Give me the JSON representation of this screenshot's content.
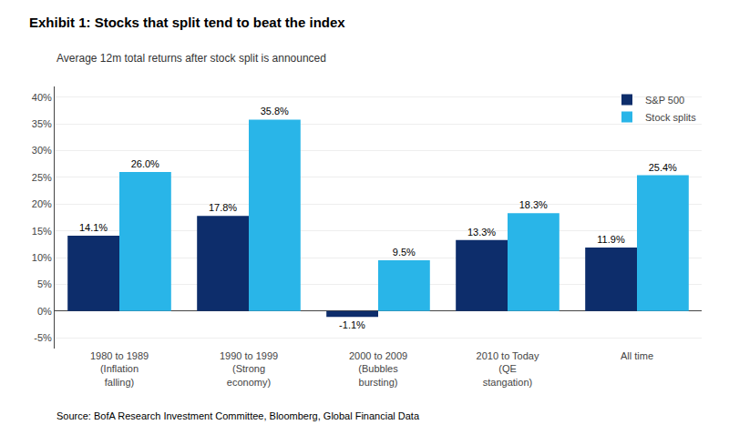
{
  "chart_data": {
    "type": "bar",
    "title": "Exhibit 1: Stocks that split tend to beat the index",
    "subtitle": "Average 12m total returns after stock split is announced",
    "annotations": [
      "Source: BofA Research Investment Committee, Bloomberg, Global Financial Data"
    ],
    "categories": [
      "1980 to 1989\n(Inflation\nfalling)",
      "1990 to 1999\n(Strong\neconomy)",
      "2000 to 2009\n(Bubbles\nbursting)",
      "2010 to Today\n(QE\nstangation)",
      "All time"
    ],
    "series": [
      {
        "name": "S&P 500",
        "color": "#0d2d6b",
        "values": [
          14.1,
          17.8,
          -1.1,
          13.3,
          11.9
        ],
        "value_labels": [
          "14.1%",
          "17.8%",
          "-1.1%",
          "13.3%",
          "11.9%"
        ]
      },
      {
        "name": "Stock splits",
        "color": "#29b5e8",
        "values": [
          26.0,
          35.8,
          9.5,
          18.3,
          25.4
        ],
        "value_labels": [
          "26.0%",
          "35.8%",
          "9.5%",
          "18.3%",
          "25.4%"
        ]
      }
    ],
    "ylim": [
      -7,
      42
    ],
    "yticks": [
      {
        "value": -5,
        "label": "-5%"
      },
      {
        "value": 0,
        "label": "0%"
      },
      {
        "value": 5,
        "label": "5%"
      },
      {
        "value": 10,
        "label": "10%"
      },
      {
        "value": 15,
        "label": "15%"
      },
      {
        "value": 20,
        "label": "20%"
      },
      {
        "value": 25,
        "label": "25%"
      },
      {
        "value": 30,
        "label": "30%"
      },
      {
        "value": 35,
        "label": "35%"
      },
      {
        "value": 40,
        "label": "40%"
      }
    ],
    "grid": true,
    "legend": "upper right",
    "data_labels": true
  }
}
